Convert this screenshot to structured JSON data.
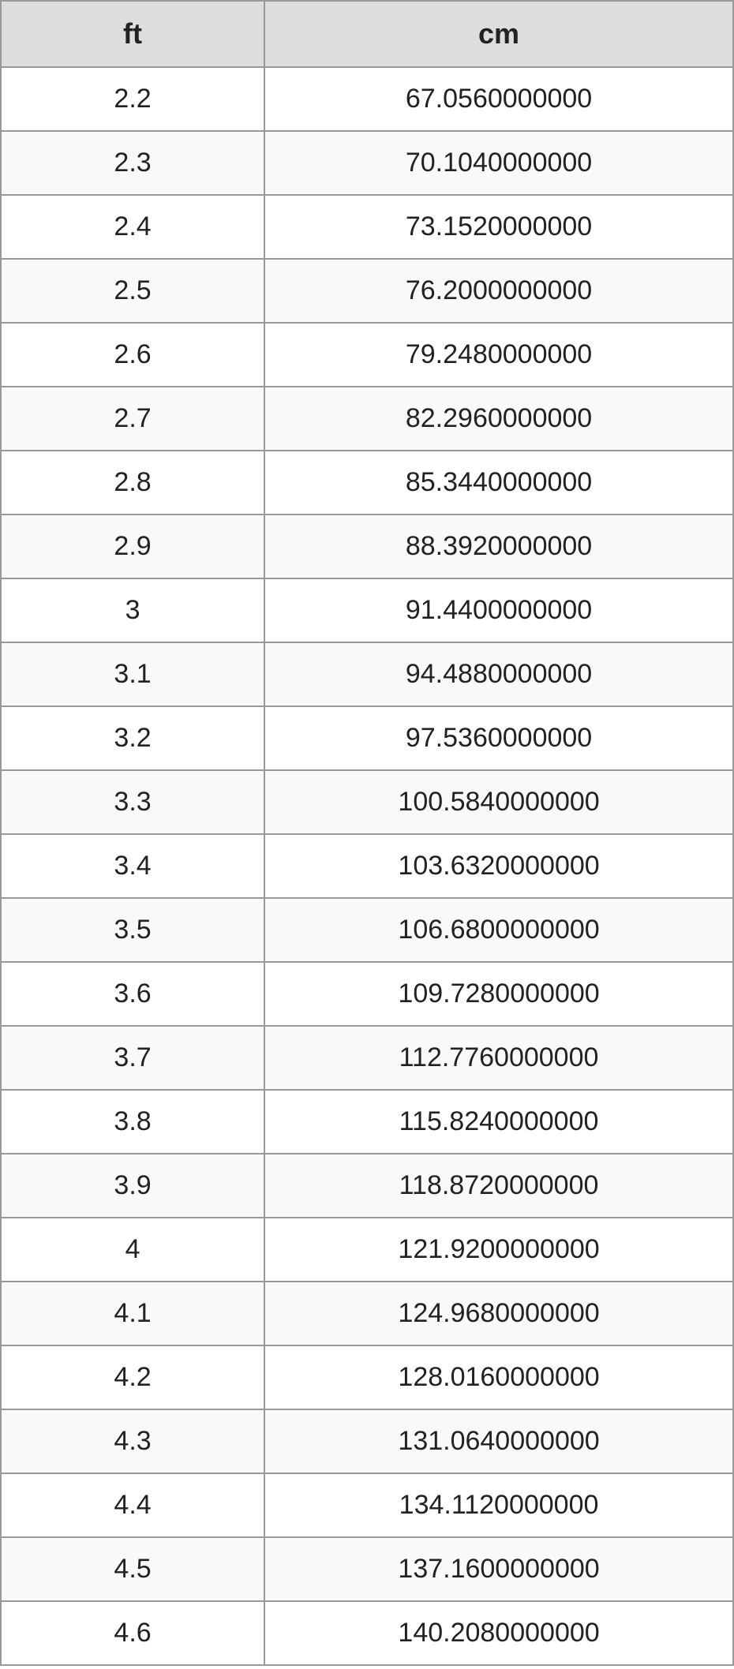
{
  "table": {
    "columns": [
      "ft",
      "cm"
    ],
    "header_background": "#dddddd",
    "header_fontsize": 36,
    "header_fontweight": "bold",
    "cell_fontsize": 34,
    "border_color": "#999999",
    "border_width": 2,
    "row_background_even": "#f9f9f9",
    "row_background_odd": "#ffffff",
    "text_color": "#222222",
    "column_widths": [
      "36%",
      "64%"
    ],
    "text_align": "center",
    "rows": [
      [
        "2.2",
        "67.0560000000"
      ],
      [
        "2.3",
        "70.1040000000"
      ],
      [
        "2.4",
        "73.1520000000"
      ],
      [
        "2.5",
        "76.2000000000"
      ],
      [
        "2.6",
        "79.2480000000"
      ],
      [
        "2.7",
        "82.2960000000"
      ],
      [
        "2.8",
        "85.3440000000"
      ],
      [
        "2.9",
        "88.3920000000"
      ],
      [
        "3",
        "91.4400000000"
      ],
      [
        "3.1",
        "94.4880000000"
      ],
      [
        "3.2",
        "97.5360000000"
      ],
      [
        "3.3",
        "100.5840000000"
      ],
      [
        "3.4",
        "103.6320000000"
      ],
      [
        "3.5",
        "106.6800000000"
      ],
      [
        "3.6",
        "109.7280000000"
      ],
      [
        "3.7",
        "112.7760000000"
      ],
      [
        "3.8",
        "115.8240000000"
      ],
      [
        "3.9",
        "118.8720000000"
      ],
      [
        "4",
        "121.9200000000"
      ],
      [
        "4.1",
        "124.9680000000"
      ],
      [
        "4.2",
        "128.0160000000"
      ],
      [
        "4.3",
        "131.0640000000"
      ],
      [
        "4.4",
        "134.1120000000"
      ],
      [
        "4.5",
        "137.1600000000"
      ],
      [
        "4.6",
        "140.2080000000"
      ]
    ]
  }
}
